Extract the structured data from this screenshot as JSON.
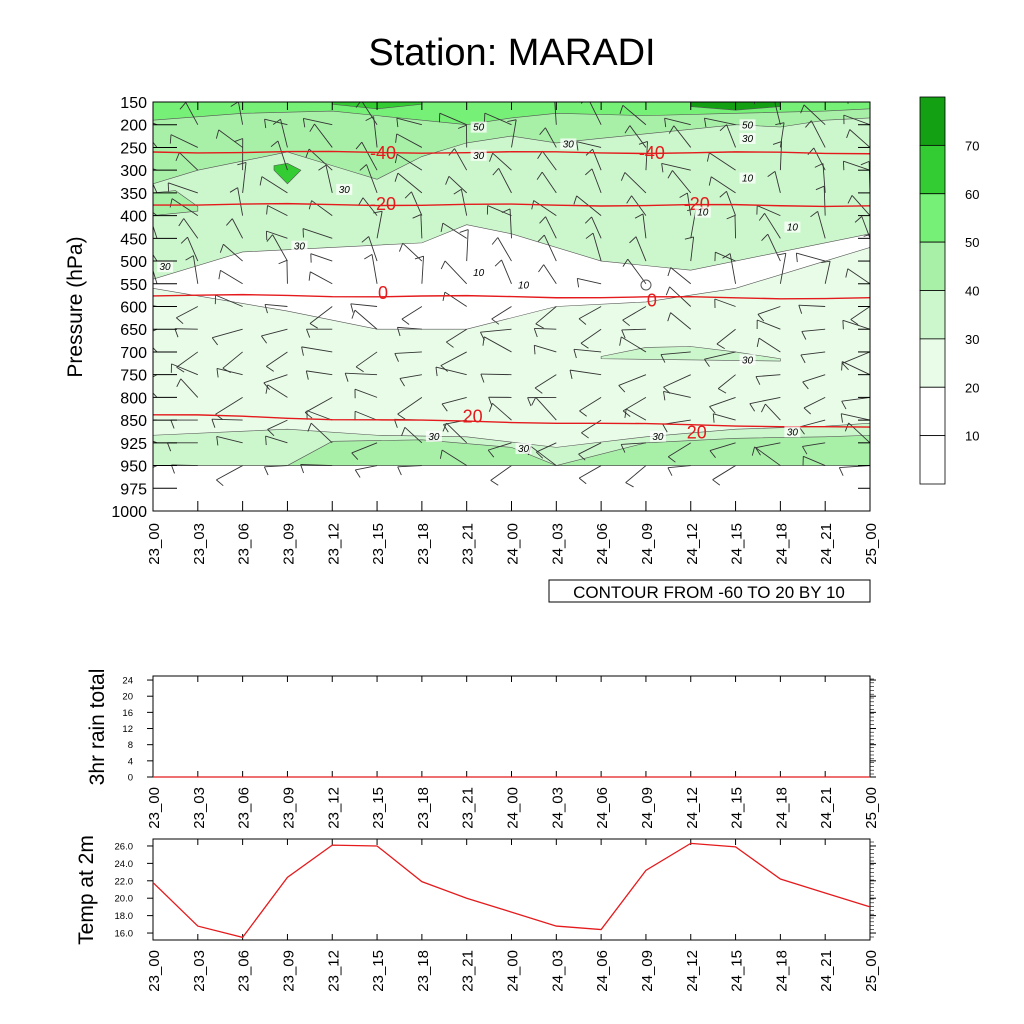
{
  "title": "Station: MARADI",
  "times": [
    "23_00",
    "23_03",
    "23_06",
    "23_09",
    "23_12",
    "23_15",
    "23_18",
    "23_21",
    "24_00",
    "24_03",
    "24_06",
    "24_09",
    "24_12",
    "24_15",
    "24_18",
    "24_21",
    "25_00"
  ],
  "chart_data": [
    {
      "type": "heatmap",
      "ylabel": "Pressure (hPa)",
      "y_ticks": [
        150,
        200,
        250,
        300,
        350,
        400,
        450,
        500,
        550,
        600,
        650,
        700,
        750,
        800,
        850,
        925,
        950,
        975,
        1000
      ],
      "y_scale": "categorical, top-down",
      "x_ticks": [
        "23_00",
        "23_03",
        "23_06",
        "23_09",
        "23_12",
        "23_15",
        "23_18",
        "23_21",
        "24_00",
        "24_03",
        "24_06",
        "24_09",
        "24_12",
        "24_15",
        "24_18",
        "24_21",
        "25_00"
      ],
      "info_label": "CONTOUR FROM -60 TO 20 BY 10",
      "colorbar": {
        "levels": [
          10,
          20,
          30,
          40,
          50,
          60,
          70
        ],
        "colors": [
          "#ffffff",
          "#ffffff",
          "#e8fce8",
          "#ccf7cc",
          "#a8f0a8",
          "#76f076",
          "#33cc33",
          "#13a013"
        ]
      },
      "temperature_contours": [
        {
          "label": "-40",
          "pressure_at_start": 260,
          "pressure_at_end": 262
        },
        {
          "label": "-20",
          "pressure_at_start": 375,
          "pressure_at_end": 378
        },
        {
          "label": "0",
          "pressure_at_start": 575,
          "pressure_at_end": 582
        },
        {
          "label": "20",
          "pressure_at_start": 838,
          "pressure_at_end": 875
        }
      ],
      "temperature_labels": [
        {
          "text": "-40",
          "time": "23_15",
          "pressure": 275
        },
        {
          "text": "-40",
          "time": "24_09",
          "pressure": 275
        },
        {
          "text": "-20",
          "time": "23_15",
          "pressure": 388
        },
        {
          "text": "-20",
          "time": "24_12",
          "pressure": 388
        },
        {
          "text": "0",
          "time": "23_15",
          "pressure": 583
        },
        {
          "text": "0",
          "time": "24_09",
          "pressure": 600
        },
        {
          "text": "20",
          "time": "23_21",
          "pressure": 858
        },
        {
          "text": "20",
          "time": "24_12",
          "pressure": 910
        }
      ],
      "humidity_labels": [
        {
          "text": "50",
          "time": "23_21",
          "pressure": 213
        },
        {
          "text": "30",
          "time": "24_03",
          "pressure": 250
        },
        {
          "text": "30",
          "time": "23_21",
          "pressure": 275
        },
        {
          "text": "50",
          "time": "24_15",
          "pressure": 208
        },
        {
          "text": "30",
          "time": "24_15",
          "pressure": 238
        },
        {
          "text": "10",
          "time": "24_15",
          "pressure": 325
        },
        {
          "text": "30",
          "time": "23_12",
          "pressure": 350
        },
        {
          "text": "10",
          "time": "24_12",
          "pressure": 400
        },
        {
          "text": "10",
          "time": "24_18",
          "pressure": 433
        },
        {
          "text": "30",
          "time": "23_09",
          "pressure": 475
        },
        {
          "text": "30",
          "time": "23_00",
          "pressure": 520
        },
        {
          "text": "10",
          "time": "23_21",
          "pressure": 533
        },
        {
          "text": "10",
          "time": "24_00",
          "pressure": 560
        },
        {
          "text": "30",
          "time": "24_15",
          "pressure": 725
        },
        {
          "text": "30",
          "time": "23_18",
          "pressure": 915
        },
        {
          "text": "30",
          "time": "24_00",
          "pressure": 935
        },
        {
          "text": "30",
          "time": "24_09",
          "pressure": 915
        },
        {
          "text": "30",
          "time": "24_18",
          "pressure": 900
        }
      ]
    },
    {
      "type": "line",
      "ylabel": "3hr rain total",
      "y_ticks": [
        0,
        4,
        8,
        12,
        16,
        20,
        24
      ],
      "ylim": [
        0,
        25
      ],
      "x": [
        "23_00",
        "23_03",
        "23_06",
        "23_09",
        "23_12",
        "23_15",
        "23_18",
        "23_21",
        "24_00",
        "24_03",
        "24_06",
        "24_09",
        "24_12",
        "24_15",
        "24_18",
        "24_21",
        "25_00"
      ],
      "values": [
        0,
        0,
        0,
        0,
        0,
        0,
        0,
        0,
        0,
        0,
        0,
        0,
        0,
        0,
        0,
        0,
        0
      ]
    },
    {
      "type": "line",
      "ylabel": "Temp at 2m",
      "y_ticks": [
        "16.0",
        "18.0",
        "20.0",
        "22.0",
        "24.0",
        "26.0"
      ],
      "ylim": [
        15.2,
        26.8
      ],
      "x": [
        "23_00",
        "23_03",
        "23_06",
        "23_09",
        "23_12",
        "23_15",
        "23_18",
        "23_21",
        "24_00",
        "24_03",
        "24_06",
        "24_09",
        "24_12",
        "24_15",
        "24_18",
        "24_21",
        "25_00"
      ],
      "values": [
        21.8,
        16.8,
        15.5,
        22.4,
        26.1,
        26.0,
        21.9,
        20.0,
        18.4,
        16.8,
        16.4,
        23.2,
        26.3,
        25.9,
        22.2,
        20.6,
        19.0
      ],
      "line_color": "#e41a1c"
    }
  ]
}
